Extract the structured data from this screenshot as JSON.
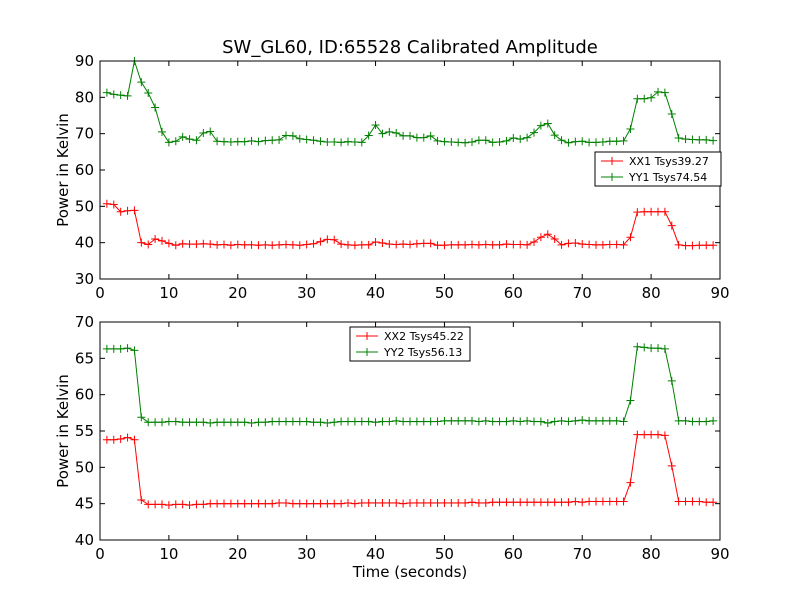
{
  "figure": {
    "title": "SW_GL60, ID:65528 Calibrated Amplitude"
  },
  "chart_data": [
    {
      "type": "line",
      "ylabel": "Power in Kelvin",
      "xlabel": "",
      "xlim": [
        0,
        90
      ],
      "ylim": [
        30,
        90
      ],
      "xticks": [
        0,
        10,
        20,
        30,
        40,
        50,
        60,
        70,
        80,
        90
      ],
      "yticks": [
        30,
        40,
        50,
        60,
        70,
        80,
        90
      ],
      "grid": false,
      "legend": "center-right",
      "series": [
        {
          "name": "XX1 Tsys39.27",
          "color": "#ff0000",
          "x": [
            1,
            2,
            3,
            4,
            5,
            6,
            7,
            8,
            9,
            10,
            11,
            12,
            13,
            14,
            15,
            16,
            17,
            18,
            19,
            20,
            21,
            22,
            23,
            24,
            25,
            26,
            27,
            28,
            29,
            30,
            31,
            32,
            33,
            34,
            35,
            36,
            37,
            38,
            39,
            40,
            41,
            42,
            43,
            44,
            45,
            46,
            47,
            48,
            49,
            50,
            51,
            52,
            53,
            54,
            55,
            56,
            57,
            58,
            59,
            60,
            61,
            62,
            63,
            64,
            65,
            66,
            67,
            68,
            69,
            70,
            71,
            72,
            73,
            74,
            75,
            76,
            77,
            78,
            79,
            80,
            81,
            82,
            83,
            84,
            85,
            86,
            87,
            88,
            89
          ],
          "values": [
            50.7,
            50.5,
            48.5,
            48.8,
            48.9,
            40.0,
            39.5,
            41.0,
            40.5,
            39.8,
            39.3,
            39.7,
            39.6,
            39.6,
            39.7,
            39.6,
            39.4,
            39.5,
            39.3,
            39.5,
            39.4,
            39.4,
            39.3,
            39.4,
            39.3,
            39.4,
            39.5,
            39.4,
            39.3,
            39.5,
            39.7,
            40.3,
            40.9,
            40.8,
            39.6,
            39.4,
            39.3,
            39.4,
            39.4,
            40.2,
            39.9,
            39.6,
            39.5,
            39.6,
            39.5,
            39.7,
            39.8,
            39.8,
            39.3,
            39.3,
            39.4,
            39.4,
            39.4,
            39.5,
            39.4,
            39.5,
            39.4,
            39.4,
            39.6,
            39.5,
            39.5,
            39.4,
            40.2,
            41.5,
            42.3,
            41.0,
            39.4,
            39.8,
            39.9,
            39.6,
            39.5,
            39.4,
            39.4,
            39.5,
            39.5,
            39.4,
            41.5,
            48.4,
            48.5,
            48.5,
            48.5,
            48.5,
            44.7,
            39.4,
            39.2,
            39.2,
            39.3,
            39.3,
            39.3
          ]
        },
        {
          "name": "YY1 Tsys74.54",
          "color": "#008000",
          "x": [
            1,
            2,
            3,
            4,
            5,
            6,
            7,
            8,
            9,
            10,
            11,
            12,
            13,
            14,
            15,
            16,
            17,
            18,
            19,
            20,
            21,
            22,
            23,
            24,
            25,
            26,
            27,
            28,
            29,
            30,
            31,
            32,
            33,
            34,
            35,
            36,
            37,
            38,
            39,
            40,
            41,
            42,
            43,
            44,
            45,
            46,
            47,
            48,
            49,
            50,
            51,
            52,
            53,
            54,
            55,
            56,
            57,
            58,
            59,
            60,
            61,
            62,
            63,
            64,
            65,
            66,
            67,
            68,
            69,
            70,
            71,
            72,
            73,
            74,
            75,
            76,
            77,
            78,
            79,
            80,
            81,
            82,
            83,
            84,
            85,
            86,
            87,
            88,
            89
          ],
          "values": [
            81.3,
            80.8,
            80.6,
            80.4,
            90.0,
            84.2,
            81.2,
            77.2,
            70.5,
            67.6,
            67.9,
            69.1,
            68.5,
            68.2,
            70.2,
            70.6,
            67.9,
            67.8,
            67.7,
            67.8,
            67.8,
            68.0,
            67.8,
            68.1,
            68.2,
            68.3,
            69.5,
            69.4,
            68.6,
            68.4,
            68.2,
            67.9,
            67.7,
            67.7,
            67.6,
            67.8,
            67.7,
            67.6,
            69.5,
            72.4,
            70.0,
            70.5,
            70.2,
            69.4,
            69.4,
            68.9,
            68.9,
            69.4,
            68.0,
            67.8,
            67.7,
            67.6,
            67.5,
            67.7,
            68.2,
            68.2,
            67.6,
            67.7,
            68.0,
            68.8,
            68.5,
            68.9,
            70.3,
            72.2,
            72.8,
            69.6,
            68.2,
            67.5,
            67.8,
            67.9,
            67.6,
            67.6,
            67.7,
            67.9,
            67.9,
            68.0,
            71.3,
            79.6,
            79.6,
            79.9,
            81.5,
            81.3,
            75.4,
            68.8,
            68.5,
            68.4,
            68.3,
            68.3,
            68.1
          ]
        }
      ]
    },
    {
      "type": "line",
      "ylabel": "Power in Kelvin",
      "xlabel": "Time (seconds)",
      "xlim": [
        0,
        90
      ],
      "ylim": [
        40,
        70
      ],
      "xticks": [
        0,
        10,
        20,
        30,
        40,
        50,
        60,
        70,
        80,
        90
      ],
      "yticks": [
        40,
        45,
        50,
        55,
        60,
        65,
        70
      ],
      "grid": false,
      "legend": "top-center",
      "series": [
        {
          "name": "XX2 Tsys45.22",
          "color": "#ff0000",
          "x": [
            1,
            2,
            3,
            4,
            5,
            6,
            7,
            8,
            9,
            10,
            11,
            12,
            13,
            14,
            15,
            16,
            17,
            18,
            19,
            20,
            21,
            22,
            23,
            24,
            25,
            26,
            27,
            28,
            29,
            30,
            31,
            32,
            33,
            34,
            35,
            36,
            37,
            38,
            39,
            40,
            41,
            42,
            43,
            44,
            45,
            46,
            47,
            48,
            49,
            50,
            51,
            52,
            53,
            54,
            55,
            56,
            57,
            58,
            59,
            60,
            61,
            62,
            63,
            64,
            65,
            66,
            67,
            68,
            69,
            70,
            71,
            72,
            73,
            74,
            75,
            76,
            77,
            78,
            79,
            80,
            81,
            82,
            83,
            84,
            85,
            86,
            87,
            88,
            89
          ],
          "values": [
            53.8,
            53.8,
            53.9,
            54.1,
            53.8,
            45.5,
            44.9,
            44.9,
            44.9,
            44.8,
            44.9,
            44.9,
            44.8,
            44.9,
            44.9,
            45.0,
            45.0,
            45.0,
            45.0,
            45.0,
            45.0,
            45.0,
            45.0,
            45.0,
            45.0,
            45.1,
            45.1,
            45.0,
            45.0,
            45.0,
            45.0,
            45.0,
            45.0,
            45.0,
            45.0,
            45.1,
            45.0,
            45.1,
            45.1,
            45.1,
            45.1,
            45.1,
            45.1,
            45.0,
            45.1,
            45.1,
            45.1,
            45.1,
            45.1,
            45.1,
            45.1,
            45.1,
            45.1,
            45.2,
            45.1,
            45.1,
            45.2,
            45.2,
            45.2,
            45.2,
            45.2,
            45.2,
            45.2,
            45.2,
            45.2,
            45.2,
            45.2,
            45.2,
            45.3,
            45.2,
            45.3,
            45.3,
            45.3,
            45.3,
            45.3,
            45.3,
            47.9,
            54.5,
            54.5,
            54.5,
            54.5,
            54.4,
            50.2,
            45.3,
            45.3,
            45.3,
            45.3,
            45.2,
            45.2
          ]
        },
        {
          "name": "YY2 Tsys56.13",
          "color": "#008000",
          "x": [
            1,
            2,
            3,
            4,
            5,
            6,
            7,
            8,
            9,
            10,
            11,
            12,
            13,
            14,
            15,
            16,
            17,
            18,
            19,
            20,
            21,
            22,
            23,
            24,
            25,
            26,
            27,
            28,
            29,
            30,
            31,
            32,
            33,
            34,
            35,
            36,
            37,
            38,
            39,
            40,
            41,
            42,
            43,
            44,
            45,
            46,
            47,
            48,
            49,
            50,
            51,
            52,
            53,
            54,
            55,
            56,
            57,
            58,
            59,
            60,
            61,
            62,
            63,
            64,
            65,
            66,
            67,
            68,
            69,
            70,
            71,
            72,
            73,
            74,
            75,
            76,
            77,
            78,
            79,
            80,
            81,
            82,
            83,
            84,
            85,
            86,
            87,
            88,
            89
          ],
          "values": [
            66.3,
            66.3,
            66.3,
            66.4,
            66.1,
            56.9,
            56.2,
            56.2,
            56.2,
            56.3,
            56.3,
            56.2,
            56.2,
            56.2,
            56.2,
            56.1,
            56.2,
            56.2,
            56.2,
            56.2,
            56.2,
            56.1,
            56.2,
            56.2,
            56.3,
            56.3,
            56.3,
            56.3,
            56.3,
            56.3,
            56.2,
            56.2,
            56.1,
            56.2,
            56.3,
            56.3,
            56.3,
            56.3,
            56.3,
            56.2,
            56.3,
            56.3,
            56.4,
            56.3,
            56.3,
            56.3,
            56.3,
            56.3,
            56.3,
            56.4,
            56.4,
            56.4,
            56.4,
            56.4,
            56.3,
            56.4,
            56.3,
            56.3,
            56.3,
            56.4,
            56.3,
            56.4,
            56.3,
            56.3,
            56.1,
            56.3,
            56.4,
            56.3,
            56.4,
            56.5,
            56.4,
            56.4,
            56.4,
            56.4,
            56.4,
            56.3,
            59.2,
            66.6,
            66.5,
            66.4,
            66.4,
            66.3,
            61.9,
            56.4,
            56.4,
            56.3,
            56.3,
            56.3,
            56.4
          ]
        }
      ]
    }
  ]
}
